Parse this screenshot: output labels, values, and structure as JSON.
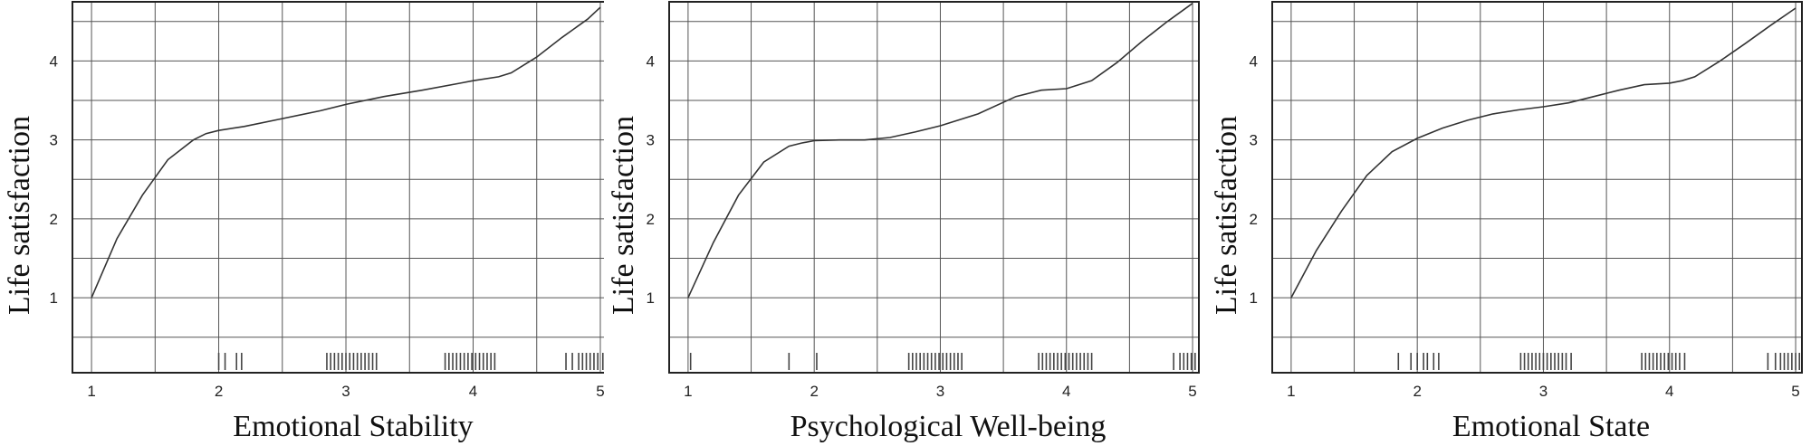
{
  "chart_data": [
    {
      "type": "line",
      "xlabel": "Emotional Stability",
      "ylabel": "Life satisfaction",
      "xlim": [
        0.85,
        5.05
      ],
      "ylim": [
        0.05,
        4.75
      ],
      "xticks": [
        1,
        2,
        3,
        4,
        5
      ],
      "yticks": [
        1,
        2,
        3,
        4
      ],
      "grid": true,
      "series": [
        {
          "x": [
            1.0,
            1.2,
            1.4,
            1.6,
            1.8,
            1.9,
            2.0,
            2.2,
            2.5,
            2.8,
            3.0,
            3.3,
            3.6,
            3.9,
            4.0,
            4.2,
            4.3,
            4.5,
            4.7,
            4.9,
            5.0
          ],
          "y": [
            1.0,
            1.75,
            2.3,
            2.75,
            3.0,
            3.08,
            3.12,
            3.17,
            3.27,
            3.37,
            3.45,
            3.55,
            3.63,
            3.72,
            3.75,
            3.8,
            3.85,
            4.05,
            4.3,
            4.53,
            4.68
          ]
        }
      ],
      "rug": [
        2.0,
        2.05,
        2.14,
        2.18,
        2.85,
        2.88,
        2.91,
        2.94,
        2.97,
        3.0,
        3.03,
        3.06,
        3.09,
        3.12,
        3.15,
        3.18,
        3.21,
        3.24,
        3.78,
        3.81,
        3.84,
        3.87,
        3.9,
        3.93,
        3.96,
        3.99,
        4.02,
        4.05,
        4.08,
        4.11,
        4.14,
        4.17,
        4.73,
        4.78,
        4.83,
        4.86,
        4.89,
        4.92,
        4.95,
        4.98,
        5.02
      ]
    },
    {
      "type": "line",
      "xlabel": "Psychological Well-being",
      "ylabel": "Life satisfaction",
      "xlim": [
        0.85,
        5.05
      ],
      "ylim": [
        0.05,
        4.75
      ],
      "xticks": [
        1,
        2,
        3,
        4,
        5
      ],
      "yticks": [
        1,
        2,
        3,
        4
      ],
      "grid": true,
      "series": [
        {
          "x": [
            1.0,
            1.2,
            1.4,
            1.6,
            1.8,
            1.9,
            2.0,
            2.2,
            2.4,
            2.6,
            2.8,
            3.0,
            3.3,
            3.6,
            3.8,
            4.0,
            4.2,
            4.4,
            4.6,
            4.8,
            5.0
          ],
          "y": [
            1.0,
            1.7,
            2.3,
            2.72,
            2.92,
            2.96,
            2.99,
            3.0,
            3.0,
            3.03,
            3.1,
            3.18,
            3.33,
            3.55,
            3.63,
            3.65,
            3.75,
            3.98,
            4.25,
            4.5,
            4.73
          ]
        }
      ],
      "rug": [
        1.02,
        1.8,
        2.02,
        2.75,
        2.78,
        2.81,
        2.84,
        2.87,
        2.9,
        2.93,
        2.96,
        2.99,
        3.02,
        3.05,
        3.08,
        3.11,
        3.14,
        3.17,
        3.78,
        3.81,
        3.84,
        3.87,
        3.9,
        3.93,
        3.96,
        3.99,
        4.02,
        4.05,
        4.08,
        4.11,
        4.14,
        4.17,
        4.2,
        4.85,
        4.9,
        4.93,
        4.96,
        4.99,
        5.02,
        5.05
      ]
    },
    {
      "type": "line",
      "xlabel": "Emotional State",
      "ylabel": "Life satisfaction",
      "xlim": [
        0.85,
        5.05
      ],
      "ylim": [
        0.05,
        4.75
      ],
      "xticks": [
        1,
        2,
        3,
        4,
        5
      ],
      "yticks": [
        1,
        2,
        3,
        4
      ],
      "grid": true,
      "series": [
        {
          "x": [
            1.0,
            1.2,
            1.4,
            1.6,
            1.8,
            2.0,
            2.2,
            2.4,
            2.6,
            2.8,
            3.0,
            3.2,
            3.4,
            3.6,
            3.8,
            4.0,
            4.1,
            4.2,
            4.4,
            4.6,
            4.8,
            5.0
          ],
          "y": [
            1.0,
            1.6,
            2.1,
            2.55,
            2.85,
            3.02,
            3.15,
            3.25,
            3.33,
            3.38,
            3.42,
            3.47,
            3.55,
            3.63,
            3.7,
            3.72,
            3.75,
            3.8,
            4.0,
            4.22,
            4.45,
            4.67
          ]
        }
      ],
      "rug": [
        1.85,
        1.95,
        2.0,
        2.05,
        2.08,
        2.13,
        2.17,
        2.82,
        2.85,
        2.88,
        2.91,
        2.94,
        2.97,
        3.0,
        3.03,
        3.06,
        3.09,
        3.12,
        3.15,
        3.18,
        3.22,
        3.78,
        3.81,
        3.84,
        3.87,
        3.9,
        3.93,
        3.96,
        3.99,
        4.02,
        4.05,
        4.08,
        4.12,
        4.78,
        4.84,
        4.88,
        4.91,
        4.94,
        4.97,
        5.0,
        5.03
      ]
    }
  ]
}
